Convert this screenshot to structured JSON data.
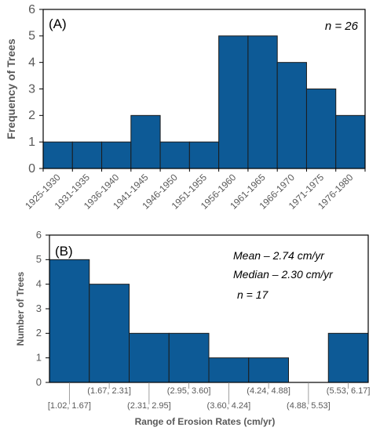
{
  "colors": {
    "bar": "#0d5a96",
    "bar_edge": "#1c1c1c",
    "axis": "#000000",
    "text": "#595959"
  },
  "chart_data": [
    {
      "type": "bar",
      "panel_label": "(A)",
      "annotations": [
        "n = 26"
      ],
      "categories": [
        "1925-1930",
        "1931-1935",
        "1936-1940",
        "1941-1945",
        "1946-1950",
        "1951-1955",
        "1956-1960",
        "1961-1965",
        "1966-1970",
        "1971-1975",
        "1976-1980"
      ],
      "values": [
        1,
        1,
        1,
        2,
        1,
        1,
        5,
        5,
        4,
        3,
        2
      ],
      "ylabel": "Frequency of Trees",
      "xlabel": "",
      "ylim": [
        0,
        6
      ],
      "yticks": [
        0,
        1,
        2,
        3,
        4,
        5,
        6
      ],
      "grid": false
    },
    {
      "type": "bar",
      "panel_label": "(B)",
      "annotations": [
        "Mean – 2.74 cm/yr",
        "Median – 2.30 cm/yr",
        "n = 17"
      ],
      "categories": [
        "[1.02, 1.67]",
        "(1.67, 2.31]",
        "(2.31, 2.95]",
        "(2.95, 3.60]",
        "(3.60, 4.24]",
        "(4.24, 4.88]",
        "(4.88, 5.53]",
        "(5.53, 6.17]"
      ],
      "values": [
        5,
        4,
        2,
        2,
        1,
        1,
        0,
        2
      ],
      "ylabel": "Number of Trees",
      "xlabel": "Range of Erosion Rates (cm/yr)",
      "ylim": [
        0,
        6
      ],
      "yticks": [
        0,
        1,
        2,
        3,
        4,
        5,
        6
      ],
      "grid": false
    }
  ]
}
